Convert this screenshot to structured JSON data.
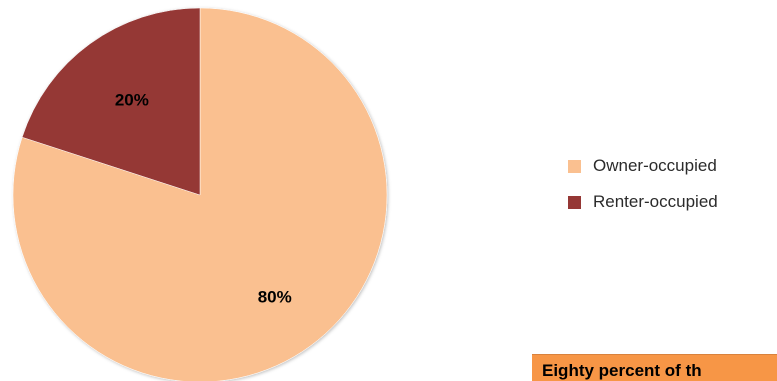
{
  "chart_data": {
    "type": "pie",
    "slices": [
      {
        "name": "Owner-occupied",
        "value": 80,
        "label": "80%",
        "color": "#fac090"
      },
      {
        "name": "Renter-occupied",
        "value": 20,
        "label": "20%",
        "color": "#953735"
      }
    ],
    "legend_position": "right",
    "title": ""
  },
  "legend": {
    "items": [
      {
        "label": "Owner-occupied",
        "color": "#fac090"
      },
      {
        "label": "Renter-occupied",
        "color": "#953735"
      }
    ]
  },
  "callout": {
    "text": "Eighty percent of th",
    "background": "#f79646"
  }
}
